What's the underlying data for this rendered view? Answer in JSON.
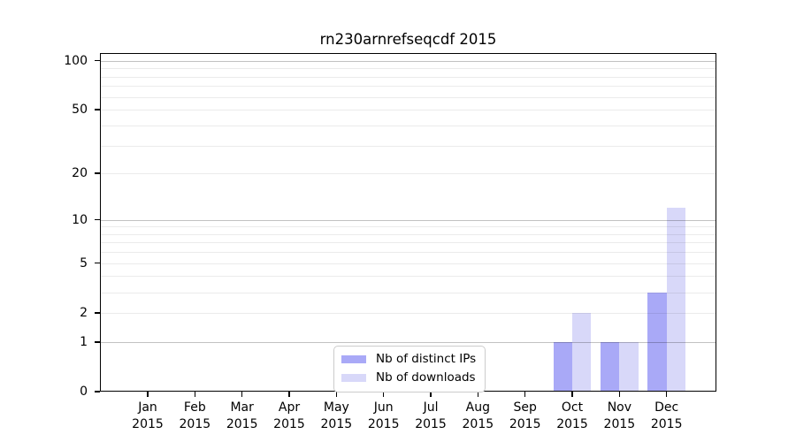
{
  "chart": {
    "background": "#ffffff",
    "spine_color": "#000000",
    "grid_major_color": "rgba(0,0,0,0.24)",
    "grid_minor_color": "rgba(0,0,0,0.08)",
    "legend_border_color": "#cccccc"
  },
  "chart_data": {
    "type": "bar",
    "title": "rn230arnrefseqcdf 2015",
    "categories": [
      "Jan 2015",
      "Feb 2015",
      "Mar 2015",
      "Apr 2015",
      "May 2015",
      "Jun 2015",
      "Jul 2015",
      "Aug 2015",
      "Sep 2015",
      "Oct 2015",
      "Nov 2015",
      "Dec 2015"
    ],
    "series": [
      {
        "name": "Nb of distinct IPs",
        "color": "#a9a9f7",
        "values": [
          0,
          0,
          0,
          0,
          0,
          0,
          0,
          0,
          0,
          1,
          1,
          3
        ]
      },
      {
        "name": "Nb of downloads",
        "color": "#d8d8f9",
        "values": [
          0,
          0,
          0,
          0,
          0,
          0,
          0,
          0,
          0,
          2,
          1,
          12
        ]
      }
    ],
    "xlabel": "",
    "ylabel": "",
    "yscale": "log1p",
    "yticks": [
      0,
      1,
      2,
      5,
      10,
      20,
      50,
      100
    ],
    "ytick_major": [
      1,
      10,
      100
    ],
    "ytick_minor_grid": [
      2,
      3,
      4,
      5,
      6,
      7,
      8,
      9,
      20,
      30,
      40,
      50,
      60,
      70,
      80,
      90
    ],
    "ylim": [
      0,
      111.5
    ],
    "grid": "both",
    "legend_position": "lower center inside"
  }
}
